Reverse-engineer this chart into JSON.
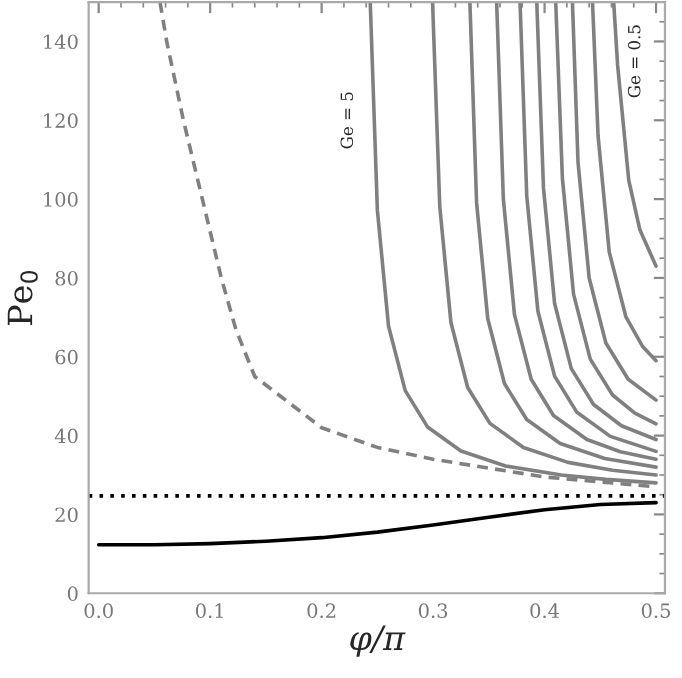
{
  "chart_data": {
    "type": "line",
    "xlabel": "φ/π",
    "ylabel": "Pe$_{0}$",
    "xlim": [
      -0.009,
      0.508
    ],
    "ylim": [
      0,
      150
    ],
    "xticks": [
      {
        "value": 0,
        "label": "0.0"
      },
      0.1,
      0.2,
      0.3,
      0.4,
      0.5
    ],
    "yticks": [
      0,
      20,
      40,
      60,
      80,
      100,
      120,
      140
    ],
    "grid": false,
    "legend": false,
    "series": [
      {
        "color": "#808080",
        "line_style": "solid",
        "x": [
          0.2436,
          0.25,
          0.26,
          0.275,
          0.295,
          0.325,
          0.365,
          0.415,
          0.455,
          0.5
        ],
        "values": [
          150,
          97.2,
          67.8,
          51.4,
          42.2,
          36.1,
          32.3,
          30.0,
          28.9,
          28
        ]
      },
      {
        "color": "#808080",
        "line_style": "solid",
        "x": [
          0.2995,
          0.306,
          0.316,
          0.331,
          0.351,
          0.381,
          0.421,
          0.461,
          0.5
        ],
        "values": [
          150,
          98.1,
          68.7,
          52.2,
          43.1,
          37.0,
          33.2,
          31.2,
          30
        ]
      },
      {
        "color": "#808080",
        "line_style": "solid",
        "x": [
          0.333,
          0.339,
          0.349,
          0.364,
          0.384,
          0.414,
          0.454,
          0.5
        ],
        "values": [
          150,
          99.1,
          69.7,
          53.2,
          44.1,
          38.0,
          34.2,
          32
        ]
      },
      {
        "color": "#808080",
        "line_style": "solid",
        "x": [
          0.357,
          0.363,
          0.373,
          0.388,
          0.408,
          0.438,
          0.468,
          0.5
        ],
        "values": [
          150,
          100.1,
          70.7,
          54.3,
          45.1,
          39.0,
          35.9,
          34
        ]
      },
      {
        "color": "#808080",
        "line_style": "solid",
        "x": [
          0.378,
          0.384,
          0.394,
          0.409,
          0.429,
          0.459,
          0.5
        ],
        "values": [
          150,
          100.9,
          71.6,
          55.1,
          45.9,
          39.8,
          36
        ]
      },
      {
        "color": "#808080",
        "line_style": "solid",
        "x": [
          0.393,
          0.399,
          0.409,
          0.424,
          0.444,
          0.469,
          0.5
        ],
        "values": [
          150,
          102.9,
          73.5,
          57.0,
          47.9,
          42.5,
          39
        ]
      },
      {
        "color": "#808080",
        "line_style": "solid",
        "x": [
          0.41,
          0.416,
          0.426,
          0.441,
          0.461,
          0.481,
          0.5
        ],
        "values": [
          150,
          105.3,
          75.9,
          59.4,
          50.3,
          45.7,
          43
        ]
      },
      {
        "color": "#808080",
        "line_style": "solid",
        "x": [
          0.425,
          0.43,
          0.44,
          0.455,
          0.475,
          0.5
        ],
        "values": [
          150,
          109.4,
          80.0,
          63.5,
          54.3,
          49
        ]
      },
      {
        "color": "#808080",
        "line_style": "solid",
        "x": [
          0.443,
          0.448,
          0.458,
          0.473,
          0.488,
          0.5
        ],
        "values": [
          150,
          116.0,
          86.6,
          70.1,
          62.6,
          59
        ]
      },
      {
        "color": "#808080",
        "line_style": "solid",
        "x": [
          0.462,
          0.4655,
          0.4755,
          0.4855,
          0.5
        ],
        "values": [
          150,
          134.1,
          104.8,
          92.2,
          83
        ]
      },
      {
        "color": "#808080",
        "line_style": "dashed",
        "x": [
          0.055,
          0.061,
          0.076,
          0.093,
          0.11,
          0.123,
          0.14,
          0.2,
          0.25,
          0.3,
          0.4,
          0.5
        ],
        "values": [
          150,
          140,
          120,
          100,
          80,
          67,
          55,
          42,
          37,
          34,
          29.5,
          27
        ]
      },
      {
        "color": "#000000",
        "line_style": "solid",
        "x": [
          0,
          0.05,
          0.1,
          0.15,
          0.2,
          0.25,
          0.3,
          0.35,
          0.4,
          0.45,
          0.5
        ],
        "values": [
          12.3,
          12.3,
          12.6,
          13.2,
          14.1,
          15.5,
          17.3,
          19.3,
          21.2,
          22.5,
          23
        ]
      }
    ],
    "ref_lines": [
      {
        "axis": "y",
        "value": 24.7,
        "color": "#000000",
        "line_style": "dotted"
      }
    ],
    "annotations": [
      "Ge = 5",
      "Ge = 0.5"
    ]
  }
}
